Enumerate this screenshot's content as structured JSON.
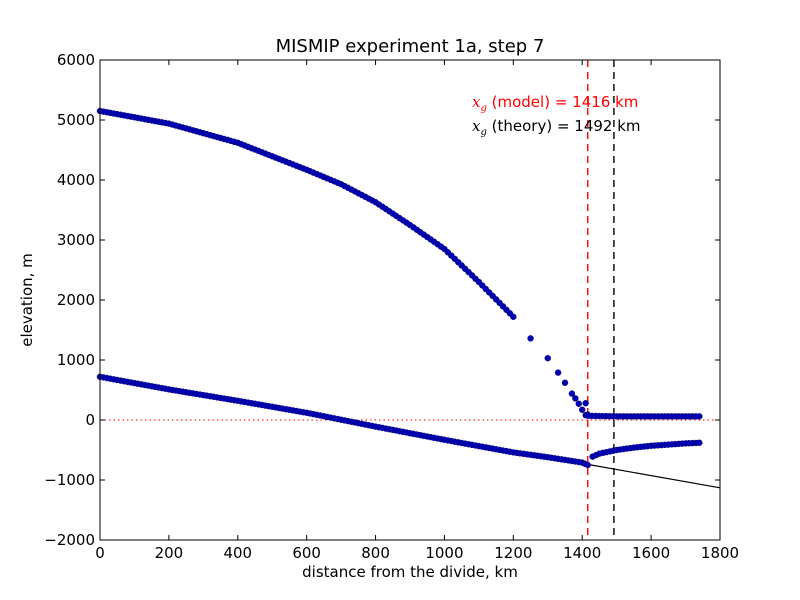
{
  "chart_data": {
    "type": "scatter",
    "title": "MISMIP experiment 1a, step 7",
    "xlabel": "distance from the divide, km",
    "ylabel": "elevation, m",
    "xlim": [
      0,
      1800
    ],
    "ylim": [
      -2000,
      6000
    ],
    "x_ticks": [
      "0",
      "200",
      "400",
      "600",
      "800",
      "1000",
      "1200",
      "1400",
      "1600",
      "1800"
    ],
    "y_ticks": [
      "−2000",
      "−1000",
      "0",
      "1000",
      "2000",
      "3000",
      "4000",
      "5000",
      "6000"
    ],
    "grid": false,
    "colors": {
      "points": "#0000b3",
      "model_line": "#ff0000",
      "theory_line": "#000000",
      "sea_level": "#ff0000",
      "bed_line": "#000000"
    },
    "annotations": [
      {
        "symbol": "x",
        "subscript": "g",
        "text": " (model) = 1416 km",
        "color": "#ff0000"
      },
      {
        "symbol": "x",
        "subscript": "g",
        "text": " (theory) = 1492 km",
        "color": "#000000"
      }
    ],
    "vlines": [
      {
        "x": 1416,
        "color": "#ff0000",
        "style": "dashed"
      },
      {
        "x": 1492,
        "color": "#000000",
        "style": "dashed"
      }
    ],
    "hlines": [
      {
        "y": 0,
        "color": "#ff0000",
        "style": "dotted"
      }
    ],
    "bed_line": {
      "x": [
        1416,
        1800
      ],
      "y": [
        -740,
        -1130
      ]
    },
    "series": [
      {
        "marker": "circle",
        "x": [
          0,
          200,
          400,
          600,
          700,
          800,
          900,
          1000,
          1100,
          1200,
          1250,
          1300,
          1330,
          1350,
          1370,
          1380,
          1390,
          1400,
          1410
        ],
        "y": [
          5150,
          4940,
          4620,
          4170,
          3930,
          3630,
          3250,
          2850,
          2300,
          1720,
          1360,
          1030,
          790,
          620,
          440,
          360,
          270,
          170,
          80
        ]
      },
      {
        "marker": "circle",
        "x": [
          1410,
          1416,
          1418,
          1500,
          1600,
          1700,
          1740
        ],
        "y": [
          280,
          90,
          70,
          60,
          60,
          60,
          60
        ]
      },
      {
        "marker": "circle",
        "x": [
          0,
          200,
          400,
          600,
          800,
          1000,
          1200,
          1300,
          1400,
          1416
        ],
        "y": [
          720,
          510,
          320,
          120,
          -110,
          -330,
          -540,
          -620,
          -710,
          -750
        ]
      },
      {
        "marker": "circle",
        "x": [
          1430,
          1450,
          1500,
          1550,
          1600,
          1650,
          1700,
          1740
        ],
        "y": [
          -610,
          -560,
          -500,
          -460,
          -430,
          -410,
          -390,
          -380
        ]
      }
    ]
  }
}
